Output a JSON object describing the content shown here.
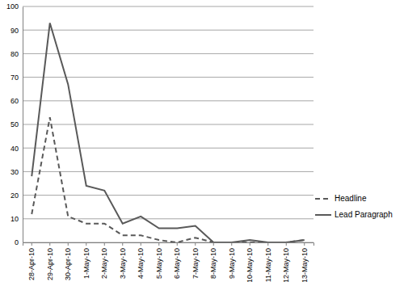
{
  "chart_data": {
    "type": "line",
    "categories": [
      "28-Apr-10",
      "29-Apr-10",
      "30-Apr-10",
      "1-May-10",
      "2-May-10",
      "3-May-10",
      "4-May-10",
      "5-May-10",
      "6-May-10",
      "7-May-10",
      "8-May-10",
      "9-May-10",
      "10-May-10",
      "11-May-10",
      "12-May-10",
      "13-May-10"
    ],
    "series": [
      {
        "name": "Headline",
        "color": "#595959",
        "line_style": "dashed",
        "values": [
          12,
          53,
          11,
          8,
          8,
          3,
          3,
          1,
          0,
          2,
          0,
          0,
          0,
          0,
          0,
          1
        ]
      },
      {
        "name": "Lead Paragraph",
        "color": "#595959",
        "line_style": "solid",
        "values": [
          28,
          93,
          67,
          24,
          22,
          8,
          11,
          6,
          6,
          7,
          0,
          0,
          1,
          0,
          0,
          1
        ]
      }
    ],
    "ylim": [
      0,
      100
    ],
    "yticks": [
      0,
      10,
      20,
      30,
      40,
      50,
      60,
      70,
      80,
      90,
      100
    ],
    "grid": true,
    "legend": "right"
  }
}
